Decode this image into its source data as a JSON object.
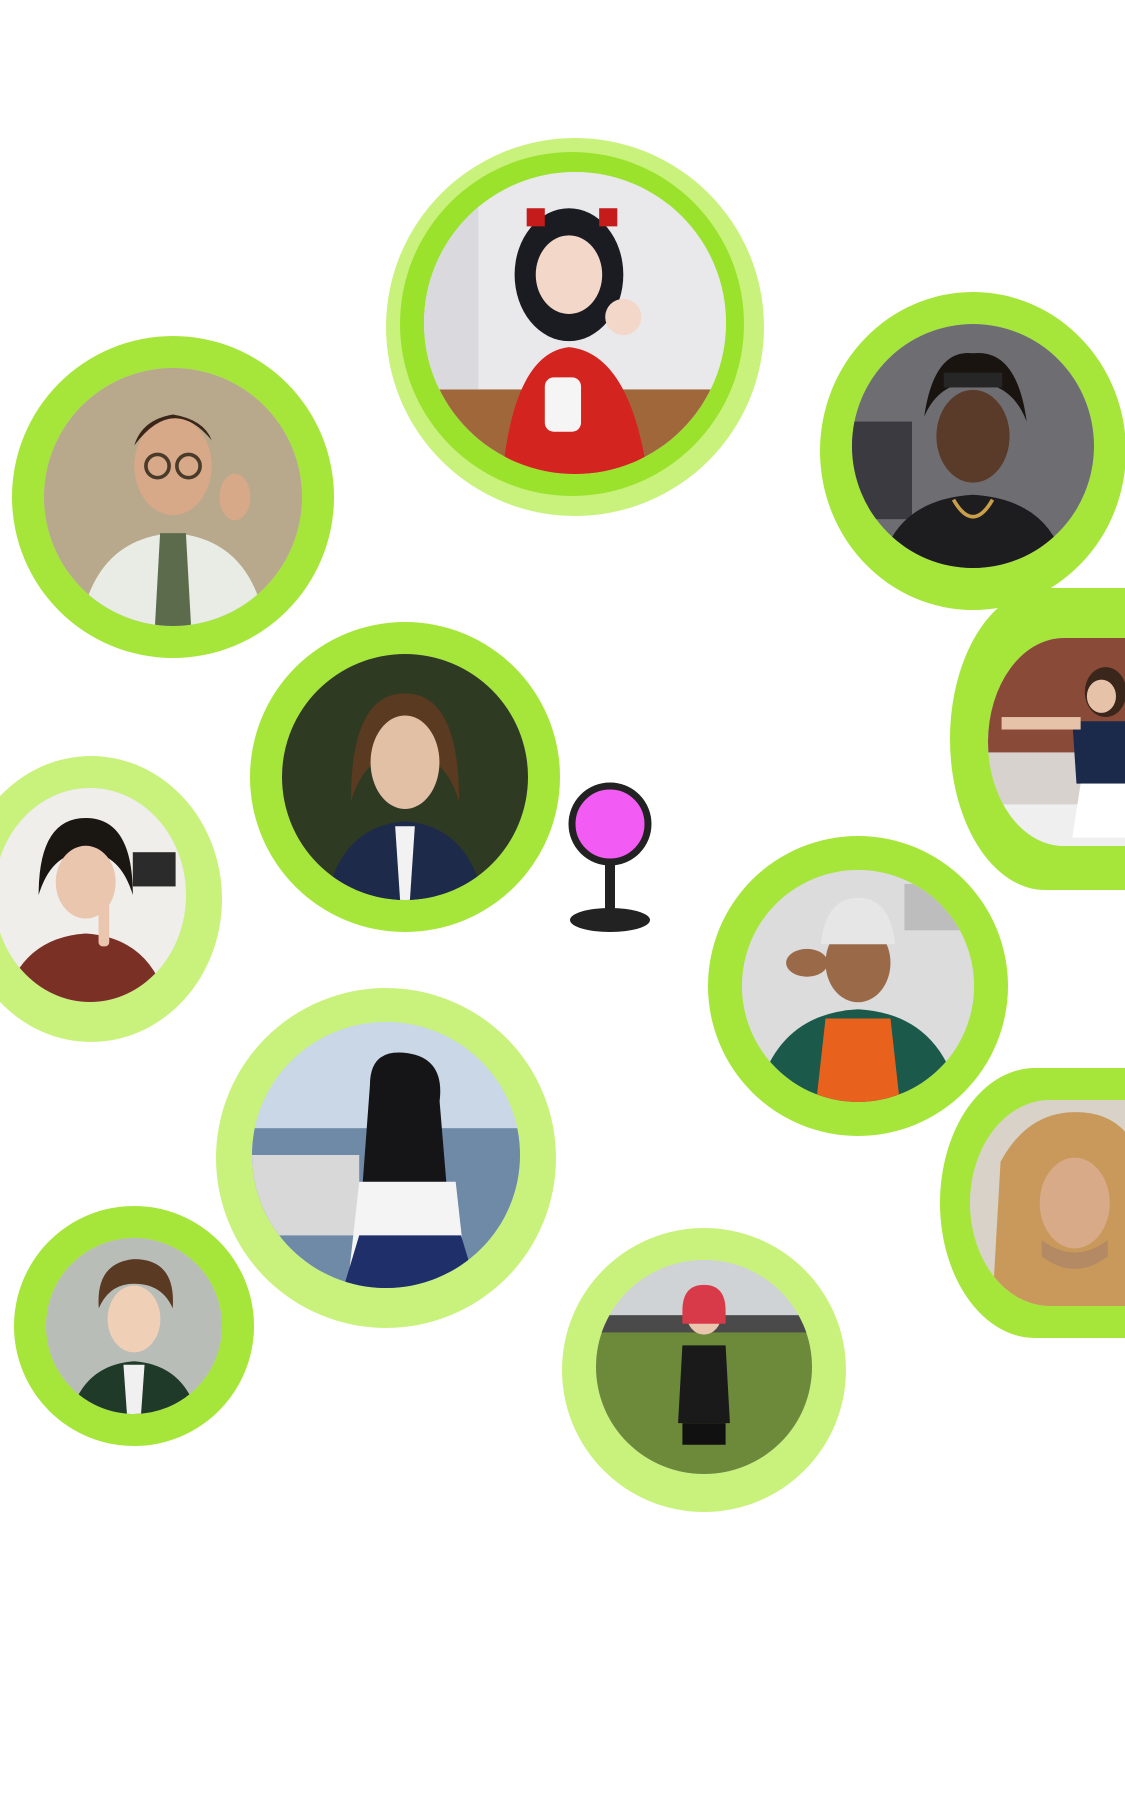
{
  "map": {
    "ring_color": "#9be22d",
    "ring_light_color": "#c9f27d",
    "pin_color": "#f25cf5",
    "pin_outline": "#222222"
  },
  "people": [
    {
      "id": "girl-red",
      "icon": "profile-photo-girl-red-dress"
    },
    {
      "id": "glasses",
      "icon": "profile-photo-man-glasses"
    },
    {
      "id": "dreads",
      "icon": "profile-photo-man-dreadlocks"
    },
    {
      "id": "longhair",
      "icon": "profile-photo-man-long-hair"
    },
    {
      "id": "sidegirl",
      "icon": "profile-photo-girl-dancing"
    },
    {
      "id": "finger",
      "icon": "profile-photo-girl-finger-on-lip"
    },
    {
      "id": "beanie",
      "icon": "profile-photo-man-beanie"
    },
    {
      "id": "sailor",
      "icon": "profile-photo-girl-sailor-uniform"
    },
    {
      "id": "blond",
      "icon": "profile-photo-man-blond"
    },
    {
      "id": "curly",
      "icon": "profile-photo-boy-curly-hair"
    },
    {
      "id": "jersey",
      "icon": "profile-photo-person-jersey"
    }
  ]
}
